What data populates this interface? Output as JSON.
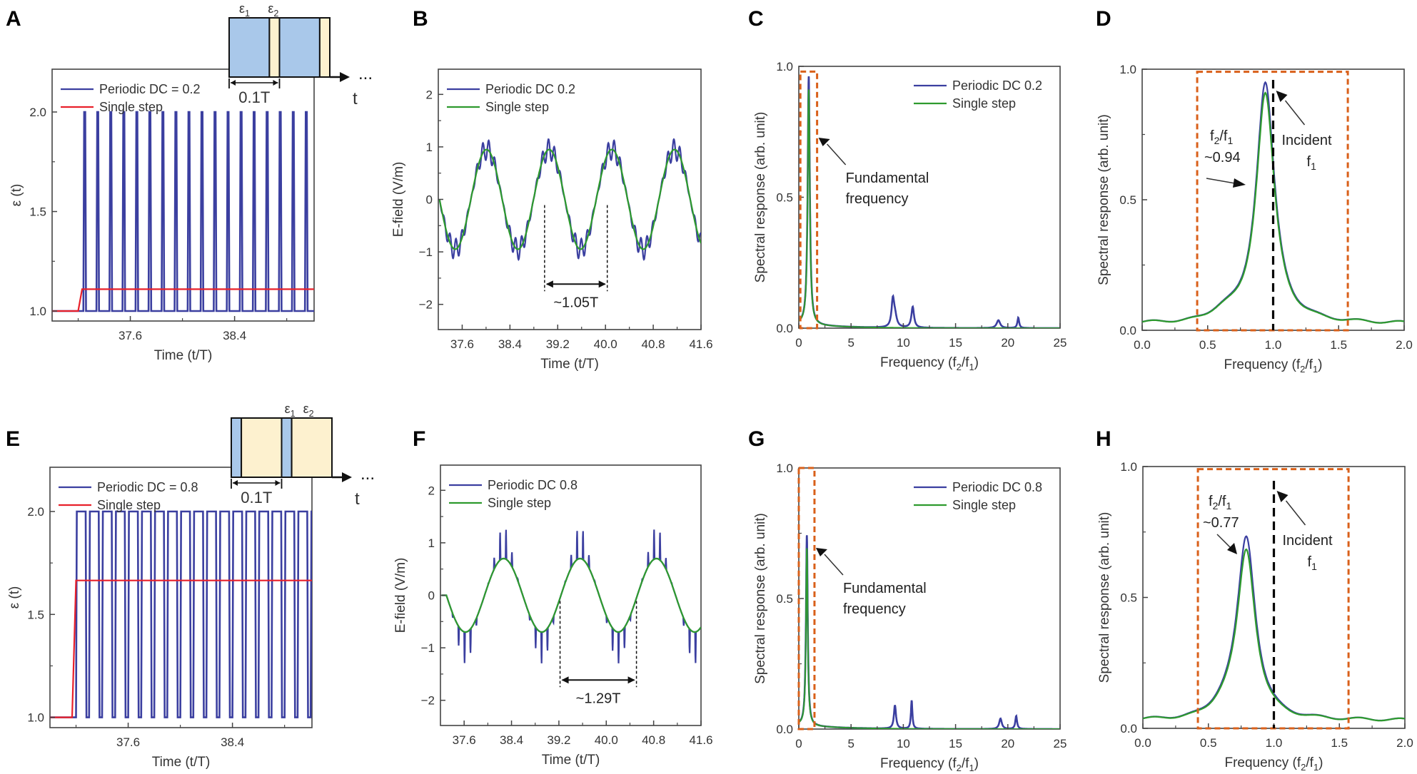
{
  "figure": {
    "panels": [
      "A",
      "B",
      "C",
      "D",
      "E",
      "F",
      "G",
      "H"
    ]
  },
  "colors": {
    "periodic": "#3b3fa0",
    "single_step_eps": "#e8202a",
    "single_step_field": "#2e9a2e",
    "highlight_box": "#d9601a",
    "incident_line": "#000000",
    "eps1_fill": "#a9c8ea",
    "eps2_fill": "#fdf1cf"
  },
  "chart_data": [
    {
      "panel": "A",
      "type": "line",
      "xlabel": "Time (t/T)",
      "ylabel": "ε (t)",
      "xlim": [
        37.0,
        39.01
      ],
      "ylim": [
        0.95,
        2.215
      ],
      "xticks": [
        37.6,
        38.4
      ],
      "xtick_labels": [
        "37.6",
        "38.4"
      ],
      "xminor": [
        37.2,
        38.0,
        38.8
      ],
      "yticks": [
        1.0,
        1.5,
        2.0
      ],
      "ytick_labels": [
        "1.0",
        "1.5",
        "2.0"
      ],
      "yminor": [
        1.25,
        1.75
      ],
      "series": [
        {
          "name": "Periodic DC = 0.2",
          "kind": "pulse",
          "start": 37.24,
          "period": 0.1,
          "duty_low": 0.8,
          "low": 1.0,
          "high": 2.0,
          "end": 39.01
        },
        {
          "name": "Single step",
          "kind": "step",
          "start": 37.2,
          "rise": 0.03,
          "low": 1.0,
          "high": 1.11,
          "end": 39.01
        }
      ],
      "legend": [
        "Periodic DC = 0.2",
        "Single step"
      ],
      "legend_position": "top-left",
      "inset": {
        "label_eps1": "ε1",
        "label_eps2": "ε2",
        "period_label": "0.1T",
        "axis_label": "t",
        "ellipsis": "...",
        "eps1_fraction": 0.8
      }
    },
    {
      "panel": "B",
      "type": "line",
      "xlabel": "Time (t/T)",
      "ylabel": "E-field (V/m)",
      "xlim": [
        37.2,
        41.6
      ],
      "ylim": [
        -2.48,
        2.48
      ],
      "xticks": [
        37.6,
        38.4,
        39.2,
        40.0,
        40.8,
        41.6
      ],
      "xtick_labels": [
        "37.6",
        "38.4",
        "39.2",
        "40.0",
        "40.8",
        "41.6"
      ],
      "yticks": [
        -2,
        -1,
        0,
        1,
        2
      ],
      "ytick_labels": [
        "−2",
        "−1",
        "0",
        "1",
        "2"
      ],
      "series": [
        {
          "name": "Periodic DC 0.2",
          "kind": "sine_ripple",
          "t0": 37.22,
          "period": 1.05,
          "amp": 0.95,
          "ripple": 0.2,
          "ripple_period": 0.1
        },
        {
          "name": "Single step",
          "kind": "sine",
          "t0": 37.22,
          "period": 1.05,
          "amp": 0.95
        }
      ],
      "legend": [
        "Periodic DC 0.2",
        "Single step"
      ],
      "legend_position": "top-left",
      "annotation": {
        "text": "~1.05T",
        "from": 38.98,
        "to": 40.03
      }
    },
    {
      "panel": "C",
      "type": "line",
      "xlabel": "Frequency (f2/f1)",
      "ylabel": "Spectral response (arb. unit)",
      "xlim": [
        0,
        25
      ],
      "ylim": [
        0,
        1.0
      ],
      "xticks": [
        0,
        5,
        10,
        15,
        20,
        25
      ],
      "xtick_labels": [
        "0",
        "5",
        "10",
        "15",
        "20",
        "25"
      ],
      "yticks": [
        0,
        0.5,
        1.0
      ],
      "ytick_labels": [
        "0.0",
        "0.5",
        "1.0"
      ],
      "series": [
        {
          "name": "Periodic DC 0.2",
          "peaks": [
            [
              0.95,
              0.95,
              0.12
            ],
            [
              9.0,
              0.1,
              0.15
            ],
            [
              9.2,
              0.04,
              0.2
            ],
            [
              10.9,
              0.08,
              0.15
            ],
            [
              19.1,
              0.03,
              0.2
            ],
            [
              21.0,
              0.04,
              0.1
            ]
          ]
        },
        {
          "name": "Single step",
          "peaks": [
            [
              0.95,
              0.9,
              0.12
            ]
          ]
        }
      ],
      "legend": [
        "Periodic DC 0.2",
        "Single step"
      ],
      "legend_position": "top-right",
      "highlight": {
        "x": [
          0.15,
          1.75
        ],
        "y": [
          0.0,
          0.98
        ]
      },
      "annotation": {
        "text": [
          "Fundamental",
          "frequency"
        ]
      }
    },
    {
      "panel": "D",
      "type": "line",
      "xlabel": "Frequency (f2/f1)",
      "ylabel": "Spectral response (arb. unit)",
      "xlim": [
        0,
        2.0
      ],
      "ylim": [
        0,
        1.0
      ],
      "xticks": [
        0,
        0.5,
        1.0,
        1.5,
        2.0
      ],
      "xtick_labels": [
        "0.0",
        "0.5",
        "1.0",
        "1.5",
        "2.0"
      ],
      "yticks": [
        0,
        0.5,
        1.0
      ],
      "ytick_labels": [
        "0.0",
        "0.5",
        "1.0"
      ],
      "series": [
        {
          "name": "Periodic DC 0.2",
          "peak_x": 0.94,
          "peak_y": 0.95,
          "base": 0.025
        },
        {
          "name": "Single step",
          "peak_x": 0.94,
          "peak_y": 0.91,
          "base": 0.025
        }
      ],
      "highlight": {
        "x": [
          0.42,
          1.57
        ],
        "y": [
          0.0,
          0.99
        ]
      },
      "incident_line_x": 1.0,
      "annotation": {
        "ratio_label": "f2/f1",
        "ratio_value": "~0.94",
        "incident_label": "Incident",
        "incident_sub": "f1"
      }
    },
    {
      "panel": "E",
      "type": "line",
      "xlabel": "Time (t/T)",
      "ylabel": "ε (t)",
      "xlim": [
        37.0,
        39.01
      ],
      "ylim": [
        0.95,
        2.215
      ],
      "xticks": [
        37.6,
        38.4
      ],
      "xtick_labels": [
        "37.6",
        "38.4"
      ],
      "xminor": [
        37.2,
        38.0,
        38.8
      ],
      "yticks": [
        1.0,
        1.5,
        2.0
      ],
      "ytick_labels": [
        "1.0",
        "1.5",
        "2.0"
      ],
      "yminor": [
        1.25,
        1.75
      ],
      "series": [
        {
          "name": "Periodic DC = 0.8",
          "kind": "pulse",
          "start": 37.2,
          "period": 0.1,
          "duty_low": 0.2,
          "low": 1.0,
          "high": 2.0,
          "end": 39.01
        },
        {
          "name": "Single step",
          "kind": "step",
          "start": 37.17,
          "rise": 0.03,
          "low": 1.0,
          "high": 1.665,
          "end": 39.01
        }
      ],
      "legend": [
        "Periodic DC = 0.8",
        "Single step"
      ],
      "legend_position": "top-left",
      "inset": {
        "label_eps1": "ε1",
        "label_eps2": "ε2",
        "period_label": "0.1T",
        "axis_label": "t",
        "ellipsis": "...",
        "eps1_fraction": 0.2
      }
    },
    {
      "panel": "F",
      "type": "line",
      "xlabel": "Time (t/T)",
      "ylabel": "E-field (V/m)",
      "xlim": [
        37.2,
        41.6
      ],
      "ylim": [
        -2.48,
        2.48
      ],
      "xticks": [
        37.6,
        38.4,
        39.2,
        40.0,
        40.8,
        41.6
      ],
      "xtick_labels": [
        "37.6",
        "38.4",
        "39.2",
        "40.0",
        "40.8",
        "41.6"
      ],
      "yticks": [
        -2,
        -1,
        0,
        1,
        2
      ],
      "ytick_labels": [
        "−2",
        "−1",
        "0",
        "1",
        "2"
      ],
      "series": [
        {
          "name": "Periodic DC 0.8",
          "kind": "sine_spikes",
          "t0": 37.3,
          "period": 1.29,
          "amp": 0.7,
          "spike": 0.6,
          "spike_period": 0.1
        },
        {
          "name": "Single step",
          "kind": "sine",
          "t0": 37.3,
          "period": 1.29,
          "amp": 0.7
        }
      ],
      "legend": [
        "Periodic DC 0.8",
        "Single step"
      ],
      "legend_position": "top-left",
      "annotation": {
        "text": "~1.29T",
        "from": 39.22,
        "to": 40.51
      }
    },
    {
      "panel": "G",
      "type": "line",
      "xlabel": "Frequency (f2/f1)",
      "ylabel": "Spectral response (arb. unit)",
      "xlim": [
        0,
        25
      ],
      "ylim": [
        0,
        1.0
      ],
      "xticks": [
        0,
        5,
        10,
        15,
        20,
        25
      ],
      "xtick_labels": [
        "0",
        "5",
        "10",
        "15",
        "20",
        "25"
      ],
      "yticks": [
        0,
        0.5,
        1.0
      ],
      "ytick_labels": [
        "0.0",
        "0.5",
        "1.0"
      ],
      "series": [
        {
          "name": "Periodic DC 0.8",
          "peaks": [
            [
              0.77,
              0.73,
              0.1
            ],
            [
              9.2,
              0.09,
              0.12
            ],
            [
              10.8,
              0.11,
              0.08
            ],
            [
              19.3,
              0.04,
              0.15
            ],
            [
              20.8,
              0.05,
              0.1
            ]
          ]
        },
        {
          "name": "Single step",
          "peaks": [
            [
              0.77,
              0.68,
              0.1
            ]
          ]
        }
      ],
      "legend": [
        "Periodic DC 0.8",
        "Single step"
      ],
      "legend_position": "top-right",
      "highlight": {
        "x": [
          0.0,
          1.5
        ],
        "y": [
          0.0,
          1.0
        ]
      },
      "annotation": {
        "text": [
          "Fundamental",
          "frequency"
        ]
      }
    },
    {
      "panel": "H",
      "type": "line",
      "xlabel": "Frequency (f2/f1)",
      "ylabel": "Spectral response (arb. unit)",
      "xlim": [
        0,
        2.0
      ],
      "ylim": [
        0,
        1.0
      ],
      "xticks": [
        0,
        0.5,
        1.0,
        1.5,
        2.0
      ],
      "xtick_labels": [
        "0.0",
        "0.5",
        "1.0",
        "1.5",
        "2.0"
      ],
      "yticks": [
        0,
        0.5,
        1.0
      ],
      "ytick_labels": [
        "0.0",
        "0.5",
        "1.0"
      ],
      "series": [
        {
          "name": "Periodic DC 0.8",
          "peak_x": 0.79,
          "peak_y": 0.73,
          "base": 0.03
        },
        {
          "name": "Single step",
          "peak_x": 0.79,
          "peak_y": 0.68,
          "base": 0.03
        }
      ],
      "highlight": {
        "x": [
          0.42,
          1.57
        ],
        "y": [
          0.0,
          0.99
        ]
      },
      "incident_line_x": 1.0,
      "annotation": {
        "ratio_label": "f2/f1",
        "ratio_value": "~0.77",
        "incident_label": "Incident",
        "incident_sub": "f1"
      }
    }
  ]
}
